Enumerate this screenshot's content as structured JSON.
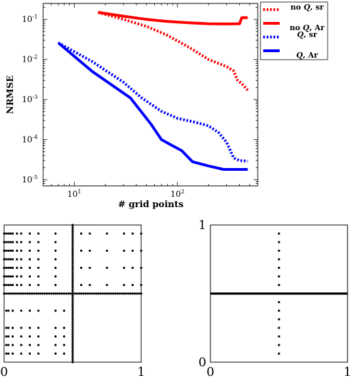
{
  "chart_data": [
    {
      "type": "line",
      "xlabel": "# grid points",
      "ylabel": "NRMSE",
      "xscale": "log",
      "yscale": "log",
      "xlim": [
        5,
        600
      ],
      "ylim": [
        7e-06,
        0.25
      ],
      "x_ticks": [
        {
          "value": 10,
          "label": "10^1"
        },
        {
          "value": 100,
          "label": "10^2"
        }
      ],
      "y_ticks": [
        {
          "value": 1e-05,
          "label": "10^-5"
        },
        {
          "value": 0.0001,
          "label": "10^-4"
        },
        {
          "value": 0.001,
          "label": "10^-3"
        },
        {
          "value": 0.01,
          "label": "10^-2"
        },
        {
          "value": 0.1,
          "label": "10^-1"
        }
      ],
      "legend_placement": "outside-right-top",
      "series": [
        {
          "name": "no Q, sr",
          "color": "#ff0000",
          "style": "dotted",
          "x": [
            17,
            30,
            50,
            80,
            130,
            200,
            300,
            350,
            380,
            420,
            480
          ],
          "y": [
            0.15,
            0.1,
            0.067,
            0.04,
            0.02,
            0.01,
            0.0066,
            0.0052,
            0.0031,
            0.0025,
            0.0017
          ]
        },
        {
          "name": "no Q, Ar",
          "color": "#ff0000",
          "style": "solid",
          "x": [
            17,
            30,
            50,
            80,
            130,
            200,
            300,
            400,
            420,
            480
          ],
          "y": [
            0.15,
            0.12,
            0.1,
            0.089,
            0.082,
            0.078,
            0.077,
            0.078,
            0.11,
            0.11
          ]
        },
        {
          "name": "Q, sr",
          "color": "#0000ff",
          "style": "dotted",
          "x": [
            7,
            15,
            30,
            45,
            70,
            100,
            150,
            200,
            250,
            300,
            350,
            400,
            480
          ],
          "y": [
            0.026,
            0.0088,
            0.0027,
            0.0011,
            0.00051,
            0.00034,
            0.00027,
            0.00022,
            0.00015,
            8.5e-05,
            3.5e-05,
            3e-05,
            2.9e-05
          ]
        },
        {
          "name": "Q, Ar",
          "color": "#0000ff",
          "style": "solid",
          "x": [
            7,
            15,
            35,
            55,
            70,
            90,
            110,
            140,
            200,
            280,
            480
          ],
          "y": [
            0.026,
            0.005,
            0.0011,
            0.00025,
            0.0001,
            7e-05,
            5.3e-05,
            2.8e-05,
            2.2e-05,
            1.8e-05,
            1.8e-05
          ]
        }
      ]
    },
    {
      "type": "scatter",
      "xlim": [
        0,
        1
      ],
      "ylim": [
        0,
        1
      ],
      "x_ticks": [
        {
          "value": 0,
          "label": "0"
        },
        {
          "value": 1,
          "label": "1"
        }
      ],
      "y_ticks": [],
      "grid_levels": [
        0,
        0.0156,
        0.0313,
        0.0469,
        0.0625,
        0.0938,
        0.125,
        0.1875,
        0.25,
        0.375,
        0.5,
        0.75,
        0.875,
        0.9375,
        1.0
      ],
      "sparse_cols": [
        0.0156,
        0.0313,
        0.0625,
        0.125,
        0.1875,
        0.25,
        0.375,
        0.4375,
        0.5
      ],
      "sparse_rows": [
        0.5,
        0.5625,
        0.625,
        0.6875,
        0.75,
        0.8125,
        0.875,
        0.9375
      ],
      "right_cols": [
        0.5,
        0.5625,
        0.625,
        0.75,
        0.875,
        0.9375,
        1.0
      ],
      "right_rows": [
        0.5,
        0.5625,
        0.6875,
        0.8125,
        0.9375
      ]
    },
    {
      "type": "scatter",
      "xlim": [
        0,
        1
      ],
      "ylim": [
        0,
        1
      ],
      "x_ticks": [
        {
          "value": 0,
          "label": "0"
        },
        {
          "value": 1,
          "label": "1"
        }
      ],
      "y_ticks": [
        {
          "value": 0,
          "label": "0"
        },
        {
          "value": 1,
          "label": "1"
        }
      ],
      "horizontal_line_y": 0.5,
      "vertical_points": {
        "x": 0.5,
        "y": [
          0.0625,
          0.125,
          0.1875,
          0.25,
          0.3125,
          0.375,
          0.4375,
          0.5625,
          0.625,
          0.6875,
          0.75,
          0.8125,
          0.875,
          0.9375
        ]
      }
    }
  ]
}
